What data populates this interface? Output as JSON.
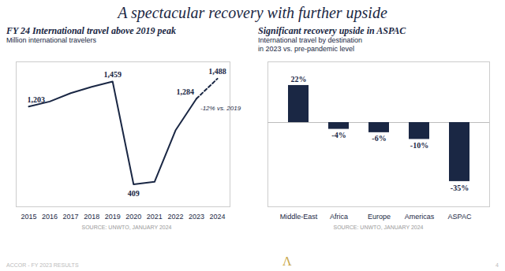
{
  "title": "A spectacular recovery with further upside",
  "color": "#1a2744",
  "annotations": [
    {
      "text": "ACCOR - FY 2023 RESULTS",
      "color": "#bbbbbb"
    },
    {
      "text": "Λ",
      "color": "#c9a84c"
    },
    {
      "text": "4",
      "color": "#bbbbbb"
    }
  ],
  "chart_data": [
    {
      "type": "line",
      "title": "FY 24 International travel above 2019 peak",
      "subtitle": [
        "Million international travelers"
      ],
      "x": [
        2015,
        2016,
        2017,
        2018,
        2019,
        2020,
        2021,
        2022,
        2023,
        2024
      ],
      "values": [
        1203,
        1255,
        1340,
        1405,
        1459,
        409,
        435,
        960,
        1284,
        1488
      ],
      "value_labels": [
        "1,203",
        null,
        null,
        null,
        "1,459",
        "409",
        null,
        null,
        "1,284",
        "1,488"
      ],
      "data_labels": true,
      "color": "#1a2744",
      "xlim": [
        2014.4,
        2024.6
      ],
      "xticks": [
        2015,
        2016,
        2017,
        2018,
        2019,
        2020,
        2021,
        2022,
        2023,
        2024
      ],
      "ylim": [
        180,
        1660
      ],
      "tick_labels": "x",
      "grid": false,
      "annotations": [
        {
          "text": "-12% vs. 2019",
          "x": 2023
        },
        {
          "text": "SOURCE: UNWTO, JANUARY 2024",
          "color": "#999999"
        }
      ]
    },
    {
      "type": "bar",
      "title": "Significant recovery upside in ASPAC",
      "subtitle": [
        "International travel by destination",
        "in 2023 vs. pre-pandemic level"
      ],
      "categories": [
        "Middle-East",
        "Africa",
        "Europe",
        "Americas",
        "ASPAC"
      ],
      "values": [
        22,
        -4,
        -6,
        -10,
        -35
      ],
      "value_labels": [
        "22%",
        "-4%",
        "-6%",
        "-10%",
        "-35%"
      ],
      "data_labels": true,
      "color": "#1a2744",
      "ylim": [
        -50,
        36
      ],
      "tick_labels": "x",
      "grid": false,
      "annotations": [
        {
          "text": "SOURCE: UNWTO, JANUARY 2024",
          "color": "#999999"
        }
      ]
    }
  ]
}
